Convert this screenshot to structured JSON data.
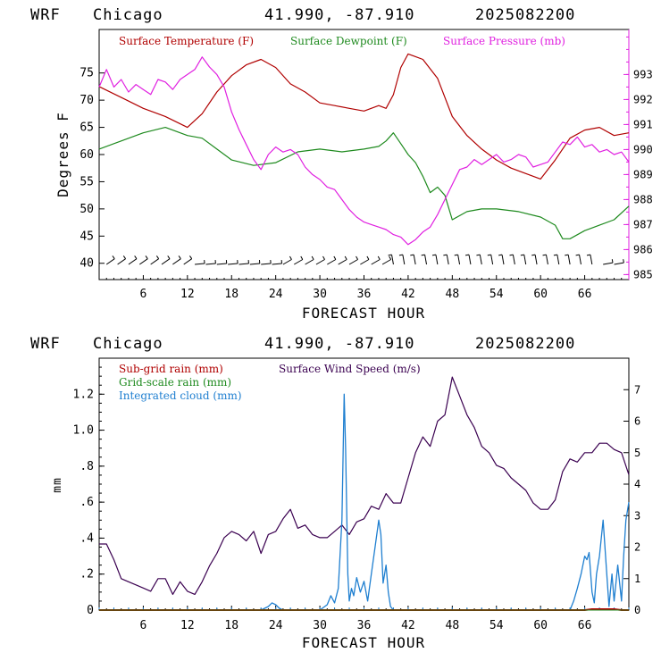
{
  "charts": [
    {
      "header": {
        "model": "WRF",
        "location": "Chicago",
        "coords": "41.990, -87.910",
        "init": "2025082200"
      },
      "legend": {
        "temp": "Surface Temperature (F)",
        "dew": "Surface Dewpoint (F)",
        "pres": "Surface Pressure (mb)"
      },
      "ylabel": "Degrees F",
      "xlabel": "FORECAST HOUR",
      "left_ticks": [
        "40",
        "45",
        "50",
        "55",
        "60",
        "65",
        "70",
        "75"
      ],
      "right_ticks": [
        "985",
        "986",
        "987",
        "988",
        "989",
        "990",
        "991",
        "992",
        "993"
      ],
      "x_ticks": [
        "6",
        "12",
        "18",
        "24",
        "30",
        "36",
        "42",
        "48",
        "54",
        "60",
        "66"
      ]
    },
    {
      "header": {
        "model": "WRF",
        "location": "Chicago",
        "coords": "41.990, -87.910",
        "init": "2025082200"
      },
      "legend": {
        "subgrid": "Sub-grid rain (mm)",
        "grid": "Grid-scale rain (mm)",
        "cloud": "Integrated cloud (mm)",
        "wind": "Surface Wind Speed (m/s)"
      },
      "ylabel": "mm",
      "xlabel": "FORECAST HOUR",
      "left_ticks": [
        "0",
        ".2",
        ".4",
        ".6",
        ".8",
        "1.0",
        "1.2"
      ],
      "right_ticks": [
        "0",
        "1",
        "2",
        "3",
        "4",
        "5",
        "6",
        "7"
      ],
      "x_ticks": [
        "6",
        "12",
        "18",
        "24",
        "30",
        "36",
        "42",
        "48",
        "54",
        "60",
        "66"
      ]
    }
  ],
  "colors": {
    "temp": "#b00000",
    "dew": "#1e8a1e",
    "pres": "#e020e0",
    "cloud": "#1f7fd0",
    "wind": "#3a0050",
    "subgrid": "#b00000",
    "grid": "#1e8a1e",
    "axes_right_top": "#e020e0"
  },
  "chart_data": [
    {
      "type": "line",
      "x_label": "FORECAST HOUR",
      "x_range": [
        0,
        72
      ],
      "y_label": "Degrees F",
      "y_range": [
        37,
        83
      ],
      "y2_label": "Surface Pressure (mb)",
      "y2_range": [
        984.8,
        994.8
      ],
      "series": [
        {
          "name": "Surface Temperature (F)",
          "axis": "left",
          "x": [
            0,
            3,
            6,
            9,
            12,
            14,
            16,
            18,
            20,
            22,
            24,
            26,
            28,
            30,
            32,
            34,
            36,
            38,
            39,
            40,
            41,
            42,
            43,
            44,
            46,
            48,
            50,
            52,
            54,
            56,
            58,
            60,
            62,
            64,
            66,
            68,
            70,
            72
          ],
          "y": [
            72.5,
            70.5,
            68.5,
            67,
            65,
            67.5,
            71.5,
            74.5,
            76.5,
            77.5,
            76,
            73,
            71.5,
            69.5,
            69,
            68.5,
            68,
            69,
            68.5,
            71,
            76,
            78.5,
            78,
            77.5,
            74,
            67,
            63.5,
            61,
            59,
            57.5,
            56.5,
            55.5,
            59,
            63,
            64.5,
            65,
            63.5,
            64
          ]
        },
        {
          "name": "Surface Dewpoint (F)",
          "axis": "left",
          "x": [
            0,
            3,
            6,
            9,
            12,
            14,
            16,
            18,
            21,
            24,
            27,
            30,
            33,
            36,
            38,
            39,
            40,
            41,
            42,
            43,
            44,
            45,
            46,
            47,
            48,
            50,
            52,
            54,
            57,
            60,
            62,
            63,
            64,
            66,
            68,
            70,
            72
          ],
          "y": [
            61,
            62.5,
            64,
            65,
            63.5,
            63,
            61,
            59,
            58,
            58.5,
            60.5,
            61,
            60.5,
            61,
            61.5,
            62.5,
            64,
            62,
            60,
            58.5,
            56,
            53,
            54,
            52.5,
            48,
            49.5,
            50,
            50,
            49.5,
            48.5,
            47,
            44.5,
            44.5,
            46,
            47,
            48,
            50.5
          ]
        },
        {
          "name": "Surface Pressure (mb)",
          "axis": "right",
          "x": [
            0,
            1,
            2,
            3,
            4,
            5,
            6,
            7,
            8,
            9,
            10,
            11,
            12,
            13,
            14,
            15,
            16,
            17,
            18,
            19,
            20,
            21,
            22,
            23,
            24,
            25,
            26,
            27,
            28,
            29,
            30,
            31,
            32,
            33,
            34,
            35,
            36,
            37,
            38,
            39,
            40,
            41,
            42,
            43,
            44,
            45,
            46,
            47,
            48,
            49,
            50,
            51,
            52,
            53,
            54,
            55,
            56,
            57,
            58,
            59,
            60,
            61,
            62,
            63,
            64,
            65,
            66,
            67,
            68,
            69,
            70,
            71,
            72
          ],
          "y": [
            992.5,
            993.2,
            992.5,
            992.8,
            992.3,
            992.6,
            992.4,
            992.2,
            992.8,
            992.7,
            992.4,
            992.8,
            993,
            993.2,
            993.7,
            993.3,
            993,
            992.5,
            991.5,
            990.8,
            990.2,
            989.6,
            989.2,
            989.8,
            990.1,
            989.9,
            990,
            989.8,
            989.3,
            989,
            988.8,
            988.5,
            988.4,
            988,
            987.6,
            987.3,
            987.1,
            987,
            986.9,
            986.8,
            986.6,
            986.5,
            986.2,
            986.4,
            986.7,
            986.9,
            987.4,
            988,
            988.6,
            989.2,
            989.3,
            989.6,
            989.4,
            989.6,
            989.8,
            989.5,
            989.6,
            989.8,
            989.7,
            989.3,
            989.4,
            989.5,
            989.9,
            990.3,
            990.2,
            990.5,
            990.1,
            990.2,
            989.9,
            990,
            989.8,
            989.9,
            989.5
          ]
        }
      ],
      "grid": false,
      "legend_position": "top"
    },
    {
      "type": "line",
      "x_label": "FORECAST HOUR",
      "x_range": [
        0,
        72
      ],
      "y_label": "mm",
      "y_range": [
        0,
        1.4
      ],
      "y2_label": "Surface Wind Speed (m/s)",
      "y2_range": [
        0,
        8
      ],
      "series": [
        {
          "name": "Surface Wind Speed (m/s)",
          "axis": "right",
          "x": [
            0,
            1,
            2,
            3,
            4,
            5,
            6,
            7,
            8,
            9,
            10,
            11,
            12,
            13,
            14,
            15,
            16,
            17,
            18,
            19,
            20,
            21,
            22,
            23,
            24,
            25,
            26,
            27,
            28,
            29,
            30,
            31,
            32,
            33,
            34,
            35,
            36,
            37,
            38,
            39,
            40,
            41,
            42,
            43,
            44,
            45,
            46,
            47,
            48,
            49,
            50,
            51,
            52,
            53,
            54,
            55,
            56,
            57,
            58,
            59,
            60,
            61,
            62,
            63,
            64,
            65,
            66,
            67,
            68,
            69,
            70,
            71,
            72
          ],
          "y": [
            2.1,
            2.1,
            1.6,
            1,
            0.9,
            0.8,
            0.7,
            0.6,
            1,
            1,
            0.5,
            0.9,
            0.6,
            0.5,
            0.9,
            1.4,
            1.8,
            2.3,
            2.5,
            2.4,
            2.2,
            2.5,
            1.8,
            2.4,
            2.5,
            2.9,
            3.2,
            2.6,
            2.7,
            2.4,
            2.3,
            2.3,
            2.5,
            2.7,
            2.4,
            2.8,
            2.9,
            3.3,
            3.2,
            3.7,
            3.4,
            3.4,
            4.2,
            5,
            5.5,
            5.2,
            6,
            6.2,
            7.4,
            6.8,
            6.2,
            5.8,
            5.2,
            5,
            4.6,
            4.5,
            4.2,
            4,
            3.8,
            3.4,
            3.2,
            3.2,
            3.5,
            4.4,
            4.8,
            4.7,
            5,
            5,
            5.3,
            5.3,
            5.1,
            5,
            4.3
          ]
        },
        {
          "name": "Integrated cloud (mm)",
          "axis": "left",
          "x": [
            0,
            22,
            23,
            23.5,
            24,
            24.5,
            25,
            30,
            31,
            31.5,
            32,
            32.5,
            33,
            33.3,
            33.5,
            33.8,
            34,
            34.3,
            34.6,
            35,
            35.5,
            36,
            36.5,
            37,
            37.5,
            38,
            38.3,
            38.6,
            39,
            39.3,
            39.6,
            40,
            64,
            64.5,
            65,
            65.5,
            66,
            66.3,
            66.6,
            67,
            67.3,
            67.6,
            68,
            68.5,
            69,
            69.3,
            69.7,
            70,
            70.5,
            71,
            71.3,
            71.6,
            72
          ],
          "y": [
            0,
            0,
            0.02,
            0.04,
            0.03,
            0.01,
            0,
            0,
            0.03,
            0.08,
            0.04,
            0.12,
            0.5,
            1.2,
            0.9,
            0.2,
            0.05,
            0.12,
            0.08,
            0.18,
            0.1,
            0.16,
            0.05,
            0.2,
            0.35,
            0.5,
            0.42,
            0.15,
            0.25,
            0.1,
            0.02,
            0,
            0,
            0.05,
            0.12,
            0.2,
            0.3,
            0.28,
            0.32,
            0.1,
            0.04,
            0.2,
            0.3,
            0.5,
            0.2,
            0.02,
            0.2,
            0.05,
            0.25,
            0.05,
            0.3,
            0.5,
            0.6
          ]
        },
        {
          "name": "Sub-grid rain (mm)",
          "axis": "left",
          "x": [
            0,
            66,
            67,
            68,
            69,
            70,
            71,
            72
          ],
          "y": [
            0,
            0,
            0.005,
            0.005,
            0.005,
            0.005,
            0,
            0
          ]
        },
        {
          "name": "Grid-scale rain (mm)",
          "axis": "left",
          "x": [
            0,
            72
          ],
          "y": [
            0,
            0
          ]
        }
      ],
      "grid": false,
      "legend_position": "top"
    }
  ]
}
